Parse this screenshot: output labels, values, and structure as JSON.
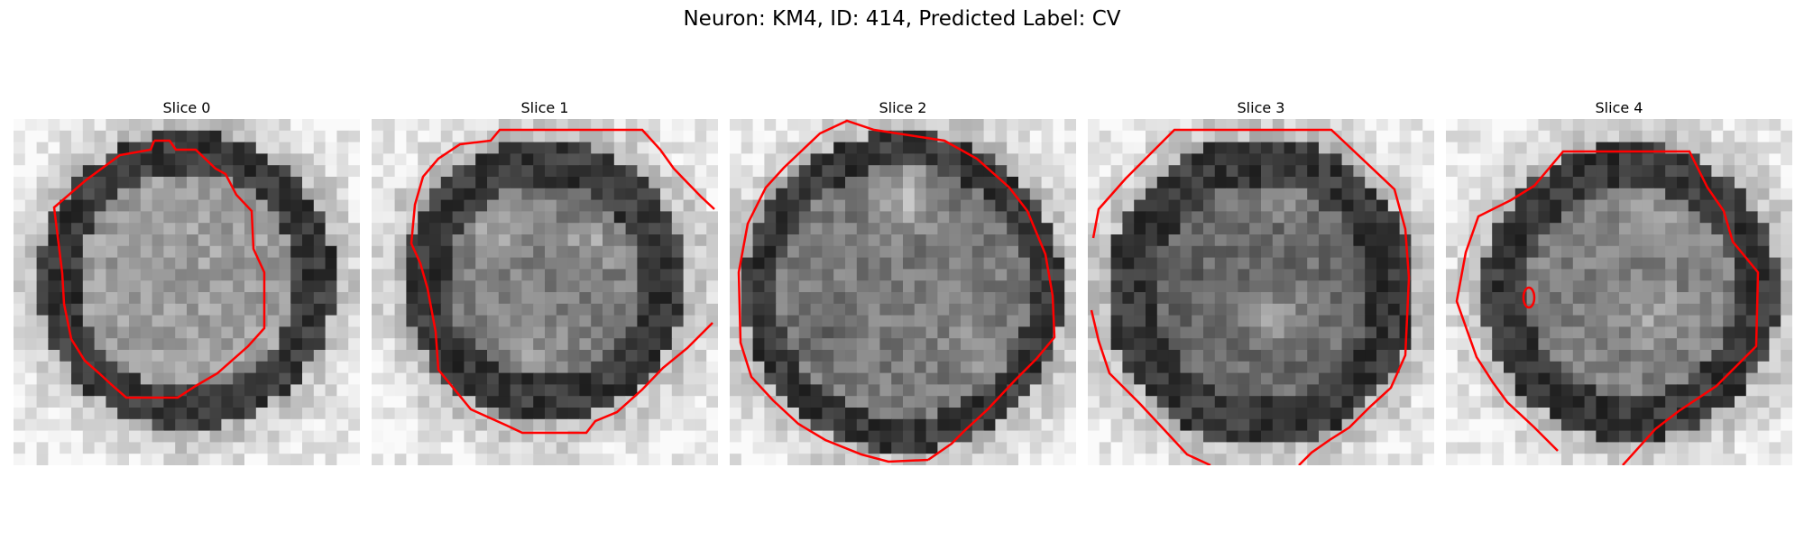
{
  "figure": {
    "title": "Neuron: KM4, ID: 414, Predicted Label: CV"
  },
  "slices": [
    {
      "title": "Slice 0"
    },
    {
      "title": "Slice 1"
    },
    {
      "title": "Slice 2"
    },
    {
      "title": "Slice 3"
    },
    {
      "title": "Slice 4"
    }
  ],
  "colors": {
    "contour": "#ff0000",
    "background": "#ffffff"
  }
}
